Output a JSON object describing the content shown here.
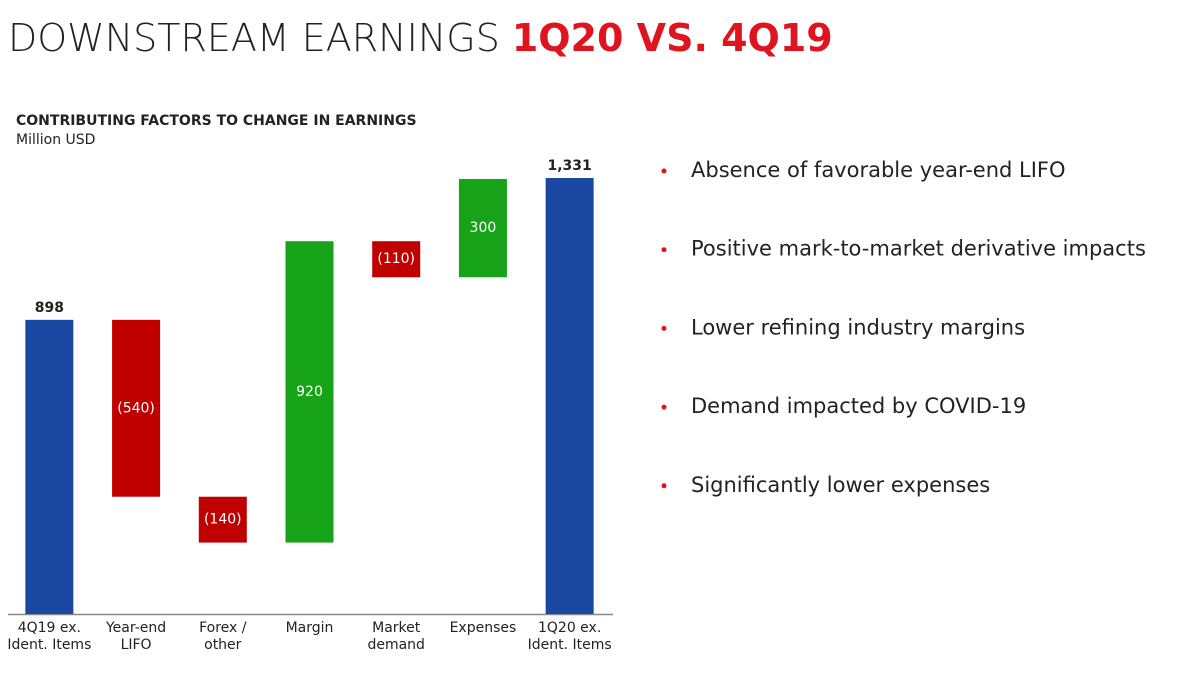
{
  "title": {
    "main": "DOWNSTREAM EARNINGS",
    "highlight": "1Q20 VS. 4Q19"
  },
  "chart_data": {
    "type": "waterfall",
    "title": "CONTRIBUTING FACTORS TO CHANGE IN EARNINGS",
    "subtitle": "Million USD",
    "categories": [
      "4Q19 ex.\nIdent. Items",
      "Year-end\nLIFO",
      "Forex /\nother",
      "Margin",
      "Market\ndemand",
      "Expenses",
      "1Q20 ex.\nIdent. Items"
    ],
    "measure": [
      "total",
      "relative",
      "relative",
      "relative",
      "relative",
      "relative",
      "total"
    ],
    "values": [
      898,
      -540,
      -140,
      920,
      -110,
      300,
      1331
    ],
    "value_labels": [
      "898",
      "(540)",
      "(140)",
      "920",
      "(110)",
      "300",
      "1,331"
    ],
    "colors": {
      "total": "#1a47a0",
      "increase": "#17a317",
      "decrease": "#c00000"
    }
  },
  "bullets": [
    "Absence of favorable year-end LIFO",
    "Positive mark-to-market derivative impacts",
    "Lower refining industry margins",
    "Demand impacted by COVID-19",
    "Significantly lower expenses"
  ]
}
